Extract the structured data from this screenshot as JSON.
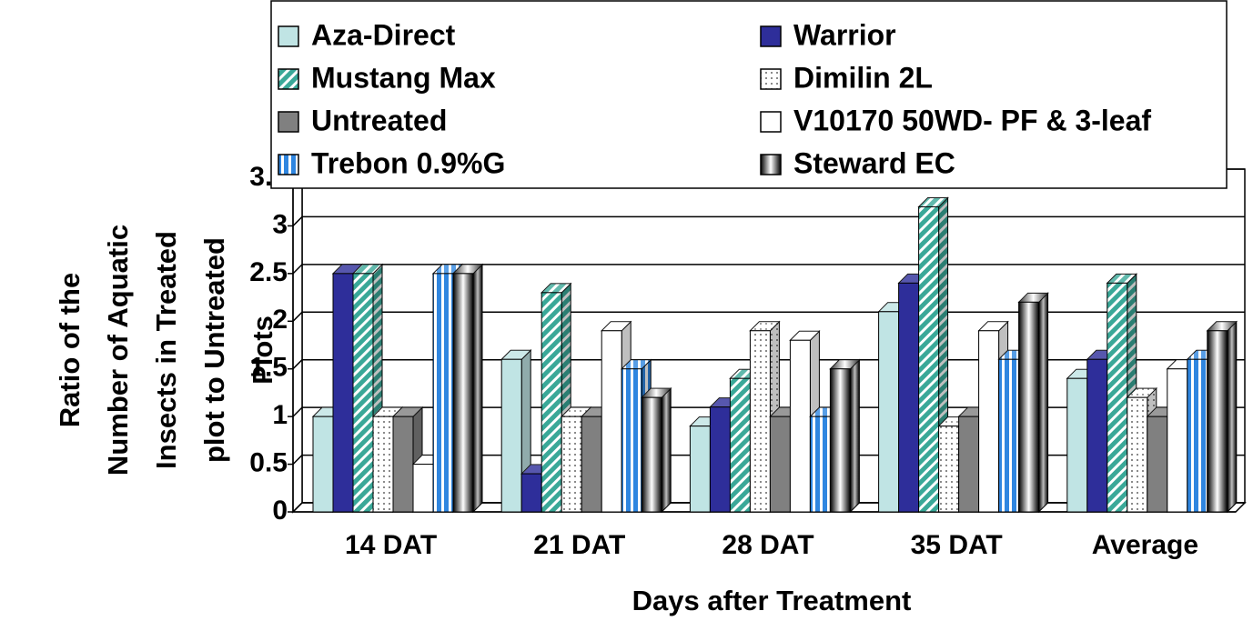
{
  "chart_data": {
    "type": "bar",
    "xlabel": "Days after Treatment",
    "ylabel": [
      "Ratio of the",
      "Number of Aquatic",
      "Insects in Treated",
      "plot to Untreated",
      "Plots"
    ],
    "categories": [
      "14 DAT",
      "21 DAT",
      "28 DAT",
      "35 DAT",
      "Average"
    ],
    "series": [
      {
        "name": "Aza-Direct",
        "color": "#c0e4e4",
        "values": [
          1.0,
          1.6,
          0.9,
          2.1,
          1.4
        ]
      },
      {
        "name": "Warrior",
        "color": "#2e2e9a",
        "values": [
          2.5,
          0.4,
          1.1,
          2.4,
          1.6
        ]
      },
      {
        "name": "Mustang Max",
        "color": "#3aa898",
        "values": [
          2.5,
          2.3,
          1.4,
          3.2,
          2.4
        ]
      },
      {
        "name": "Dimilin 2L",
        "color": "#ffffff",
        "values": [
          1.0,
          1.0,
          1.9,
          0.9,
          1.2
        ]
      },
      {
        "name": "Untreated",
        "color": "#808080",
        "values": [
          1.0,
          1.0,
          1.0,
          1.0,
          1.0
        ]
      },
      {
        "name": "V10170 50WD- PF & 3-leaf",
        "color": "#ffffff",
        "values": [
          0.5,
          1.9,
          1.8,
          1.9,
          1.5
        ]
      },
      {
        "name": "Trebon 0.9%G",
        "color": "#2f86e0",
        "values": [
          2.5,
          1.5,
          1.0,
          1.6,
          1.6
        ]
      },
      {
        "name": "Steward EC",
        "color": "#000000",
        "values": [
          2.5,
          1.2,
          1.5,
          2.2,
          1.9
        ]
      }
    ],
    "ylim": [
      0,
      3.5
    ],
    "yticks": [
      0,
      0.5,
      1,
      1.5,
      2,
      2.5,
      3,
      3.5
    ],
    "grid": true
  }
}
